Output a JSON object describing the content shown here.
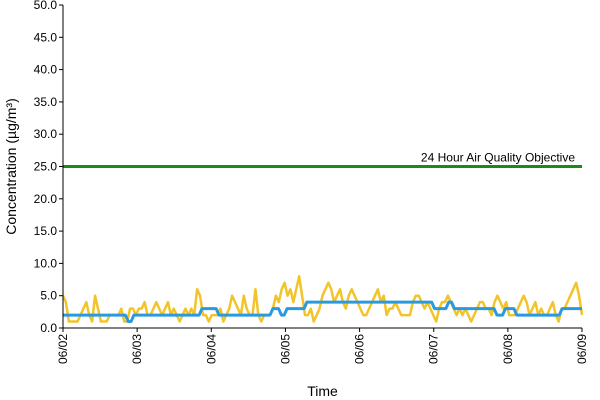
{
  "chart_data": {
    "type": "line",
    "title": "",
    "xlabel": "Time",
    "ylabel": "Concentration (µg/m³)",
    "ylim": [
      0,
      50
    ],
    "yticks": [
      "0.0",
      "5.0",
      "10.0",
      "15.0",
      "20.0",
      "25.0",
      "30.0",
      "35.0",
      "40.0",
      "45.0",
      "50.0"
    ],
    "xlim": [
      "06/02",
      "06/09"
    ],
    "xticks": [
      "06/02",
      "06/03",
      "06/04",
      "06/05",
      "06/06",
      "06/07",
      "06/08",
      "06/09"
    ],
    "grid": false,
    "legend": "none",
    "colors": {
      "objective": "#1a8a1a",
      "hourly": "#f2c42a",
      "rolling": "#2a9ae0"
    },
    "objective": {
      "value": 25,
      "label": "24 Hour Air Quality Objective"
    },
    "series": [
      {
        "values": [
          5,
          4,
          1,
          1,
          1,
          1,
          2,
          3,
          4,
          2,
          1,
          5,
          3,
          1,
          1,
          1,
          2,
          2,
          2,
          2,
          3,
          1,
          1,
          3,
          3,
          2,
          3,
          3,
          4,
          2,
          2,
          3,
          4,
          3,
          2,
          3,
          4,
          2,
          3,
          2,
          1,
          2,
          3,
          2,
          3,
          2,
          6,
          5,
          2,
          2,
          1,
          2,
          2,
          2,
          3,
          1,
          2,
          3,
          5,
          4,
          3,
          2,
          5,
          3,
          2,
          2,
          6,
          2,
          1,
          2,
          2,
          2,
          3,
          5,
          4,
          6,
          7,
          5,
          6,
          4,
          6,
          8,
          5,
          2,
          2,
          3,
          1,
          2,
          3,
          5,
          6,
          7,
          6,
          4,
          5,
          6,
          4,
          3,
          5,
          6,
          5,
          4,
          3,
          2,
          2,
          3,
          4,
          5,
          6,
          4,
          5,
          2,
          3,
          3,
          4,
          3,
          2,
          2,
          2,
          2,
          4,
          5,
          5,
          4,
          3,
          4,
          3,
          2,
          1,
          3,
          4,
          4,
          5,
          4,
          3,
          2,
          3,
          2,
          3,
          2,
          1,
          2,
          3,
          4,
          4,
          3,
          3,
          2,
          4,
          5,
          4,
          3,
          4,
          2,
          2,
          2,
          3,
          4,
          5,
          4,
          2,
          3,
          4,
          2,
          3,
          2,
          2,
          3,
          4,
          2,
          1,
          3,
          3,
          4,
          5,
          6,
          7,
          5,
          2
        ]
      },
      {
        "values": [
          2,
          2,
          2,
          2,
          2,
          2,
          2,
          2,
          2,
          2,
          2,
          2,
          2,
          2,
          2,
          2,
          2,
          2,
          2,
          2,
          2,
          2,
          2,
          1,
          1,
          2,
          2,
          2,
          2,
          2,
          2,
          2,
          2,
          2,
          2,
          2,
          2,
          2,
          2,
          2,
          2,
          2,
          2,
          2,
          2,
          2,
          2,
          2,
          2,
          3,
          3,
          3,
          3,
          3,
          3,
          2,
          2,
          2,
          2,
          2,
          2,
          2,
          2,
          2,
          2,
          2,
          2,
          2,
          2,
          2,
          2,
          2,
          2,
          2,
          3,
          3,
          3,
          2,
          2,
          3,
          3,
          3,
          3,
          3,
          3,
          3,
          4,
          4,
          4,
          4,
          4,
          4,
          4,
          4,
          4,
          4,
          4,
          4,
          4,
          4,
          4,
          4,
          4,
          4,
          4,
          4,
          4,
          4,
          4,
          4,
          4,
          4,
          4,
          4,
          4,
          4,
          4,
          4,
          4,
          4,
          4,
          4,
          4,
          4,
          4,
          4,
          4,
          4,
          4,
          4,
          4,
          3,
          3,
          3,
          3,
          3,
          4,
          4,
          3,
          3,
          3,
          3,
          3,
          3,
          3,
          3,
          3,
          3,
          3,
          3,
          3,
          3,
          3,
          2,
          2,
          2,
          3,
          3,
          3,
          3,
          2,
          2,
          2,
          2,
          2,
          2,
          2,
          2,
          2,
          2,
          2,
          2,
          2,
          2,
          2,
          2,
          3,
          3,
          3,
          3,
          3,
          3,
          3,
          3
        ]
      }
    ]
  }
}
